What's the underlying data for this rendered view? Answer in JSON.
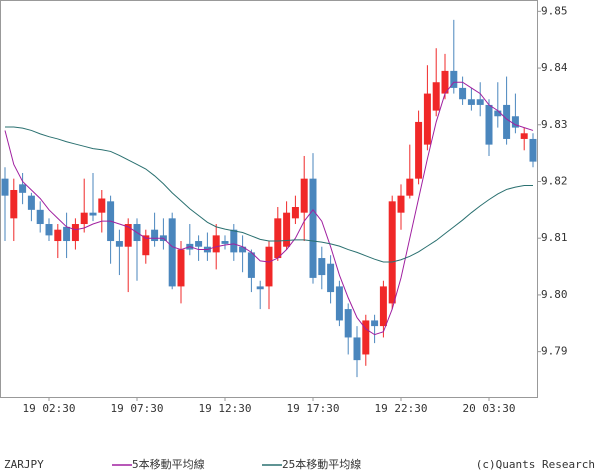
{
  "chart_data": {
    "type": "candlestick",
    "symbol": "ZARJPY",
    "credit": "(c)Quants Research",
    "categories": [
      null,
      null,
      null,
      null,
      null,
      "19 02:30",
      null,
      null,
      null,
      null,
      null,
      null,
      null,
      null,
      null,
      "19 07:30",
      null,
      null,
      null,
      null,
      null,
      null,
      null,
      null,
      null,
      "19 12:30",
      null,
      null,
      null,
      null,
      null,
      null,
      null,
      null,
      null,
      "19 17:30",
      null,
      null,
      null,
      null,
      null,
      null,
      null,
      null,
      null,
      "19 22:30",
      null,
      null,
      null,
      null,
      null,
      null,
      null,
      null,
      null,
      "20 03:30",
      null,
      null,
      null,
      null,
      null
    ],
    "open": [
      9.8205,
      9.8135,
      9.8195,
      9.8175,
      9.815,
      9.8125,
      9.8095,
      9.812,
      9.8095,
      9.8125,
      9.8145,
      9.8145,
      9.8165,
      9.8095,
      9.8085,
      9.8125,
      9.807,
      9.8115,
      9.8105,
      9.8135,
      9.8015,
      9.809,
      9.8095,
      9.8085,
      9.8075,
      9.8095,
      9.8115,
      9.8085,
      9.8075,
      9.8015,
      9.8015,
      9.8065,
      9.8085,
      9.8135,
      9.8145,
      9.8205,
      9.8065,
      9.8055,
      9.8015,
      9.7975,
      9.7925,
      9.7895,
      9.7955,
      9.7945,
      9.7985,
      9.8145,
      9.8175,
      9.8205,
      9.8265,
      9.8325,
      9.8355,
      9.8395,
      9.8365,
      9.8345,
      9.8345,
      9.8335,
      9.8325,
      9.8335,
      9.8315,
      9.8275,
      9.8275
    ],
    "high": [
      9.8225,
      9.8205,
      9.8215,
      9.818,
      9.8165,
      9.8135,
      9.8125,
      9.8145,
      9.8135,
      9.8205,
      9.8215,
      9.8185,
      9.8175,
      9.8115,
      9.8135,
      9.8135,
      9.8115,
      9.8145,
      9.8135,
      9.8145,
      9.8095,
      9.8125,
      9.8105,
      9.811,
      9.8125,
      9.8105,
      9.8125,
      9.8105,
      9.808,
      9.8025,
      9.8095,
      9.8155,
      9.8165,
      9.8175,
      9.8245,
      9.825,
      9.8085,
      9.807,
      9.8025,
      9.7985,
      9.7945,
      9.7965,
      9.7965,
      9.8025,
      9.8175,
      9.8195,
      9.8265,
      9.8325,
      9.8405,
      9.8435,
      9.8425,
      9.8485,
      9.8385,
      9.8365,
      9.8375,
      9.8345,
      9.8375,
      9.8385,
      9.8355,
      9.8295,
      9.8285
    ],
    "low": [
      9.8095,
      9.8095,
      9.816,
      9.813,
      9.811,
      9.8095,
      9.8065,
      9.8065,
      9.808,
      9.811,
      9.813,
      9.811,
      9.8055,
      9.8035,
      9.8005,
      9.8025,
      9.8055,
      9.8085,
      9.808,
      9.801,
      9.7985,
      9.807,
      9.806,
      9.806,
      9.8045,
      9.808,
      9.806,
      9.804,
      9.8005,
      9.7975,
      9.7975,
      9.806,
      9.808,
      9.8125,
      9.8095,
      9.802,
      9.801,
      9.7985,
      9.7945,
      9.7895,
      9.7855,
      9.7875,
      9.7915,
      9.7925,
      9.7975,
      9.8115,
      9.817,
      9.8195,
      9.8255,
      9.8315,
      9.8345,
      9.8355,
      9.8335,
      9.8325,
      9.8315,
      9.8245,
      9.8295,
      9.8265,
      9.8285,
      9.8255,
      9.8225
    ],
    "close": [
      9.8175,
      9.8185,
      9.818,
      9.815,
      9.8125,
      9.8105,
      9.8115,
      9.8095,
      9.8125,
      9.8145,
      9.814,
      9.817,
      9.8095,
      9.8085,
      9.8125,
      9.8095,
      9.8105,
      9.8095,
      9.8095,
      9.8015,
      9.808,
      9.808,
      9.8085,
      9.8075,
      9.8105,
      9.809,
      9.8075,
      9.8075,
      9.803,
      9.801,
      9.8085,
      9.8135,
      9.8145,
      9.8155,
      9.8205,
      9.803,
      9.8035,
      9.8005,
      9.7955,
      9.7925,
      9.7885,
      9.7955,
      9.7945,
      9.8015,
      9.8165,
      9.8175,
      9.8205,
      9.8305,
      9.8355,
      9.8375,
      9.8395,
      9.8365,
      9.8345,
      9.8335,
      9.8335,
      9.8265,
      9.8315,
      9.8275,
      9.8295,
      9.8285,
      9.8235
    ],
    "up_color": "#f02828",
    "down_color": "#4a86bd",
    "series": [
      {
        "name": "5本移動平均線",
        "color": "#a020a0",
        "values": [
          9.829,
          9.823,
          9.82,
          9.8185,
          9.817,
          9.815,
          9.8135,
          9.812,
          9.8115,
          9.8118,
          9.8125,
          9.813,
          9.813,
          9.8125,
          9.812,
          9.811,
          9.81,
          9.81,
          9.81,
          9.8085,
          9.808,
          9.8085,
          9.808,
          9.808,
          9.8085,
          9.8088,
          9.809,
          9.8085,
          9.8075,
          9.806,
          9.8058,
          9.8065,
          9.808,
          9.81,
          9.813,
          9.815,
          9.813,
          9.8085,
          9.8035,
          9.7995,
          9.796,
          9.794,
          9.793,
          9.7935,
          9.7975,
          9.803,
          9.81,
          9.817,
          9.824,
          9.8305,
          9.8355,
          9.8375,
          9.8375,
          9.8365,
          9.8355,
          9.8335,
          9.8325,
          9.831,
          9.83,
          9.8295,
          9.829
        ]
      },
      {
        "name": "25本移動平均線",
        "color": "#2a7070",
        "values": [
          9.8296,
          9.8296,
          9.8294,
          9.829,
          9.8284,
          9.8279,
          9.8275,
          9.827,
          9.8266,
          9.8262,
          9.8258,
          9.8256,
          9.8253,
          9.8246,
          9.8238,
          9.823,
          9.8222,
          9.821,
          9.8196,
          9.818,
          9.8166,
          9.8152,
          9.814,
          9.8128,
          9.812,
          9.8116,
          9.8113,
          9.811,
          9.8104,
          9.8098,
          9.8095,
          9.8095,
          9.8096,
          9.8097,
          9.8097,
          9.8095,
          9.8093,
          9.809,
          9.8086,
          9.808,
          9.8075,
          9.8069,
          9.8063,
          9.8058,
          9.8058,
          9.8062,
          9.8068,
          9.8076,
          9.8086,
          9.8096,
          9.8108,
          9.812,
          9.8132,
          9.8145,
          9.8157,
          9.8168,
          9.8178,
          9.8186,
          9.819,
          9.8193,
          9.8193
        ]
      }
    ],
    "ylim": [
      9.782,
      9.852
    ],
    "yticks": [
      9.79,
      {
        "value": 9.8,
        "label": "9.80"
      },
      9.81,
      9.82,
      9.83,
      9.84,
      9.85
    ]
  }
}
